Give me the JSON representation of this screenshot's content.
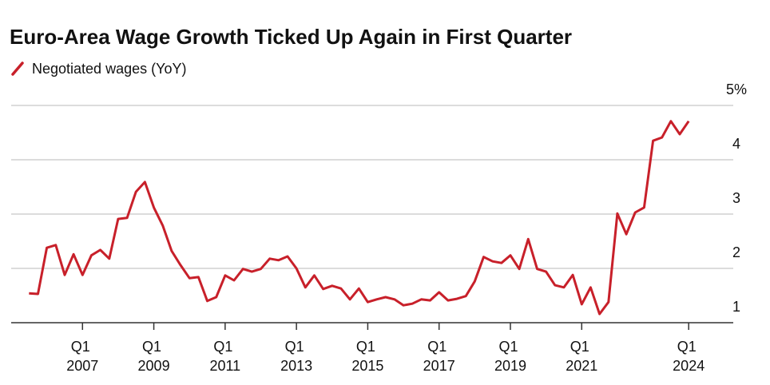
{
  "chart_data": {
    "type": "line",
    "title": "Euro-Area Wage Growth Ticked Up Again in First Quarter",
    "x": [
      2005.5,
      2005.75,
      2006,
      2006.25,
      2006.5,
      2006.75,
      2007,
      2007.25,
      2007.5,
      2007.75,
      2008,
      2008.25,
      2008.5,
      2008.75,
      2009,
      2009.25,
      2009.5,
      2009.75,
      2010,
      2010.25,
      2010.5,
      2010.75,
      2011,
      2011.25,
      2011.5,
      2011.75,
      2012,
      2012.25,
      2012.5,
      2012.75,
      2013,
      2013.25,
      2013.5,
      2013.75,
      2014,
      2014.25,
      2014.5,
      2014.75,
      2015,
      2015.25,
      2015.5,
      2015.75,
      2016,
      2016.25,
      2016.5,
      2016.75,
      2017,
      2017.25,
      2017.5,
      2017.75,
      2018,
      2018.25,
      2018.5,
      2018.75,
      2019,
      2019.25,
      2019.5,
      2019.75,
      2020,
      2020.25,
      2020.5,
      2020.75,
      2021,
      2021.25,
      2021.5,
      2021.75,
      2022,
      2022.25,
      2022.5,
      2022.75,
      2023,
      2023.25,
      2023.5,
      2023.75,
      2024
    ],
    "series": [
      {
        "name": "Negotiated wages (YoY)",
        "color": "#c8202a",
        "values": [
          1.54,
          1.53,
          2.38,
          2.43,
          1.88,
          2.26,
          1.88,
          2.24,
          2.34,
          2.18,
          2.91,
          2.93,
          3.41,
          3.59,
          3.12,
          2.79,
          2.32,
          2.06,
          1.82,
          1.84,
          1.4,
          1.47,
          1.87,
          1.78,
          1.99,
          1.94,
          1.99,
          2.18,
          2.15,
          2.22,
          2.0,
          1.65,
          1.87,
          1.62,
          1.68,
          1.63,
          1.43,
          1.63,
          1.38,
          1.43,
          1.47,
          1.43,
          1.32,
          1.35,
          1.43,
          1.41,
          1.56,
          1.41,
          1.44,
          1.49,
          1.76,
          2.21,
          2.13,
          2.1,
          2.24,
          1.99,
          2.54,
          1.99,
          1.94,
          1.69,
          1.65,
          1.88,
          1.34,
          1.65,
          1.16,
          1.38,
          3.01,
          2.63,
          3.03,
          3.12,
          4.35,
          4.41,
          4.71,
          4.47,
          4.71
        ]
      }
    ],
    "xlim": [
      2005,
      2025.25
    ],
    "xticks": [
      {
        "value": 2007,
        "label": "Q1 2007"
      },
      {
        "value": 2009,
        "label": "Q1 2009"
      },
      {
        "value": 2011,
        "label": "Q1 2011"
      },
      {
        "value": 2013,
        "label": "Q1 2013"
      },
      {
        "value": 2015,
        "label": "Q1 2015"
      },
      {
        "value": 2017,
        "label": "Q1 2017"
      },
      {
        "value": 2019,
        "label": "Q1 2019"
      },
      {
        "value": 2021,
        "label": "Q1 2021"
      },
      {
        "value": 2024,
        "label": "Q1 2024"
      }
    ],
    "ylim": [
      1,
      5
    ],
    "yticks": [
      1,
      2,
      3,
      4,
      {
        "value": 5,
        "label": "5%"
      }
    ],
    "grid": true
  }
}
